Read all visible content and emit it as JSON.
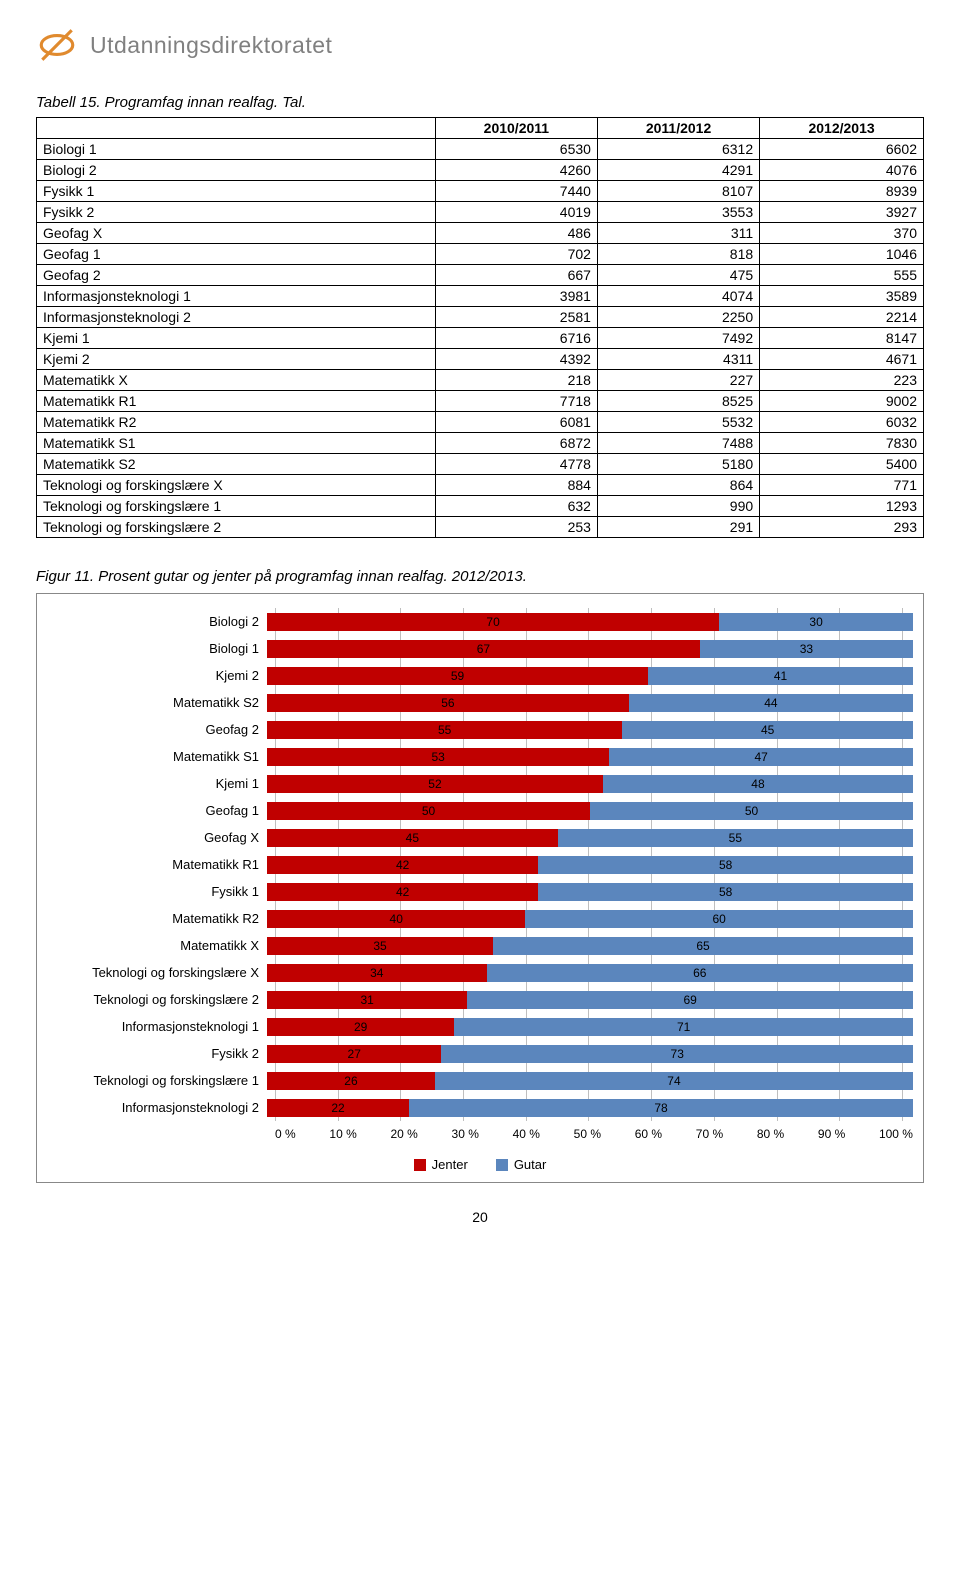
{
  "brand": "Utdanningsdirektoratet",
  "logo_color": "#e08a2e",
  "table_caption": "Tabell 15. Programfag innan realfag. Tal.",
  "table": {
    "columns": [
      "",
      "2010/2011",
      "2011/2012",
      "2012/2013"
    ],
    "rows": [
      [
        "Biologi 1",
        6530,
        6312,
        6602
      ],
      [
        "Biologi 2",
        4260,
        4291,
        4076
      ],
      [
        "Fysikk 1",
        7440,
        8107,
        8939
      ],
      [
        "Fysikk 2",
        4019,
        3553,
        3927
      ],
      [
        "Geofag X",
        486,
        311,
        370
      ],
      [
        "Geofag 1",
        702,
        818,
        1046
      ],
      [
        "Geofag 2",
        667,
        475,
        555
      ],
      [
        "Informasjonsteknologi 1",
        3981,
        4074,
        3589
      ],
      [
        "Informasjonsteknologi 2",
        2581,
        2250,
        2214
      ],
      [
        "Kjemi 1",
        6716,
        7492,
        8147
      ],
      [
        "Kjemi 2",
        4392,
        4311,
        4671
      ],
      [
        "Matematikk X",
        218,
        227,
        223
      ],
      [
        "Matematikk R1",
        7718,
        8525,
        9002
      ],
      [
        "Matematikk R2",
        6081,
        5532,
        6032
      ],
      [
        "Matematikk S1",
        6872,
        7488,
        7830
      ],
      [
        "Matematikk S2",
        4778,
        5180,
        5400
      ],
      [
        "Teknologi og forskingslære X",
        884,
        864,
        771
      ],
      [
        "Teknologi og forskingslære 1",
        632,
        990,
        1293
      ],
      [
        "Teknologi og forskingslære 2",
        253,
        291,
        293
      ]
    ]
  },
  "chart_caption": "Figur 11. Prosent gutar og jenter på programfag innan realfag. 2012/2013.",
  "chart": {
    "type": "stacked-bar-horizontal",
    "series": [
      "Jenter",
      "Gutar"
    ],
    "series_colors": [
      "#c00000",
      "#5b86bd"
    ],
    "background_color": "#ffffff",
    "grid_color": "#bfbfbf",
    "xtick_step": 10,
    "xlim": [
      0,
      100
    ],
    "xtick_suffix": " %",
    "label_fontsize": 13,
    "value_fontsize": 12,
    "bars": [
      {
        "label": "Biologi 2",
        "values": [
          70,
          30
        ]
      },
      {
        "label": "Biologi 1",
        "values": [
          67,
          33
        ]
      },
      {
        "label": "Kjemi 2",
        "values": [
          59,
          41
        ]
      },
      {
        "label": "Matematikk S2",
        "values": [
          56,
          44
        ]
      },
      {
        "label": "Geofag 2",
        "values": [
          55,
          45
        ]
      },
      {
        "label": "Matematikk S1",
        "values": [
          53,
          47
        ]
      },
      {
        "label": "Kjemi 1",
        "values": [
          52,
          48
        ]
      },
      {
        "label": "Geofag 1",
        "values": [
          50,
          50
        ]
      },
      {
        "label": "Geofag X",
        "values": [
          45,
          55
        ]
      },
      {
        "label": "Matematikk R1",
        "values": [
          42,
          58
        ]
      },
      {
        "label": "Fysikk 1",
        "values": [
          42,
          58
        ]
      },
      {
        "label": "Matematikk R2",
        "values": [
          40,
          60
        ]
      },
      {
        "label": "Matematikk X",
        "values": [
          35,
          65
        ]
      },
      {
        "label": "Teknologi og forskingslære X",
        "values": [
          34,
          66
        ]
      },
      {
        "label": "Teknologi og forskingslære 2",
        "values": [
          31,
          69
        ]
      },
      {
        "label": "Informasjonsteknologi 1",
        "values": [
          29,
          71
        ]
      },
      {
        "label": "Fysikk 2",
        "values": [
          27,
          73
        ]
      },
      {
        "label": "Teknologi og forskingslære 1",
        "values": [
          26,
          74
        ]
      },
      {
        "label": "Informasjonsteknologi 2",
        "values": [
          22,
          78
        ]
      }
    ]
  },
  "page_number": "20"
}
